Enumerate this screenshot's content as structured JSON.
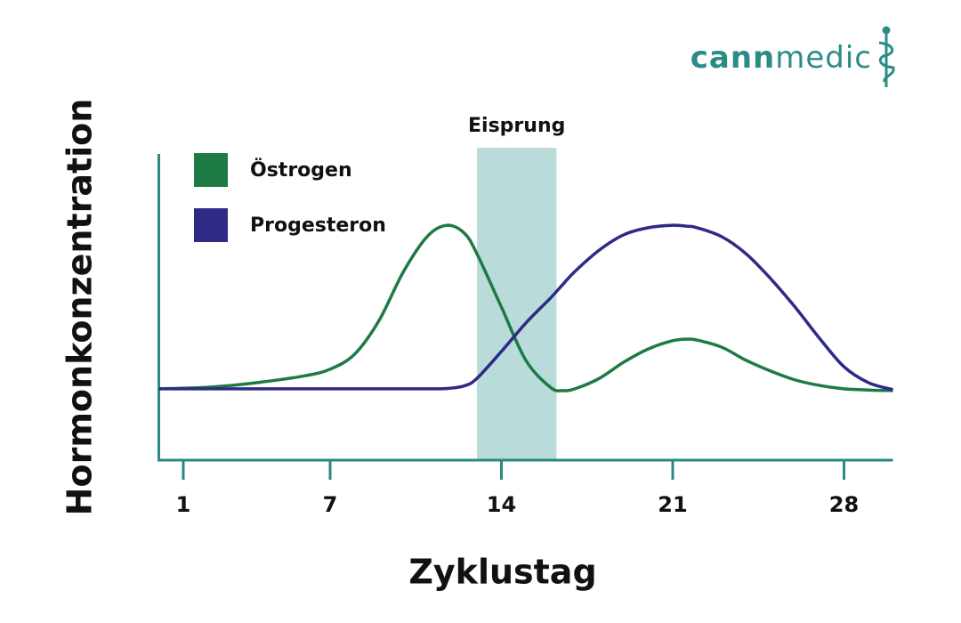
{
  "brand": {
    "bold": "cann",
    "light": "medic"
  },
  "chart_data": {
    "type": "line",
    "y_label": "Hormonkonzentration",
    "x_label": "Zyklustag",
    "x": [
      0,
      2,
      4,
      6,
      7,
      8,
      9,
      10,
      11,
      11.8,
      12.5,
      13,
      14,
      15,
      16,
      16.5,
      17,
      18,
      19,
      20,
      21,
      21.6,
      22,
      23,
      24,
      25,
      26,
      27,
      28,
      29,
      30
    ],
    "series": [
      {
        "name": "Östrogen",
        "color": "#1e7a44",
        "values": [
          23.3,
          23.8,
          25.3,
          27.6,
          29.7,
          34.6,
          45.6,
          61.6,
          73.3,
          76.7,
          74,
          67.4,
          50,
          32.6,
          23.8,
          22.7,
          23.3,
          26.7,
          32,
          36.3,
          39,
          39.5,
          39.2,
          36.9,
          32.6,
          29.1,
          26.2,
          24.4,
          23.3,
          22.9,
          22.7
        ]
      },
      {
        "name": "Progesteron",
        "color": "#2e2a85",
        "values": [
          23.3,
          23.3,
          23.3,
          23.3,
          23.3,
          23.3,
          23.3,
          23.3,
          23.3,
          23.4,
          24.3,
          26.7,
          35.5,
          44.8,
          52.9,
          57.3,
          61.6,
          68.6,
          73.6,
          75.9,
          76.7,
          76.4,
          75.9,
          73,
          67.4,
          59.3,
          50,
          39.8,
          30.5,
          25.3,
          23
        ]
      }
    ],
    "band": {
      "label": "Eisprung",
      "range": [
        13,
        16.25
      ],
      "color": "#b9dcdb"
    },
    "xlim": [
      0,
      30
    ],
    "xticks": [
      1,
      7,
      14,
      21,
      28
    ],
    "ylim": [
      0,
      100
    ],
    "axis_color": "#2a8a80",
    "legend": "upper left"
  }
}
